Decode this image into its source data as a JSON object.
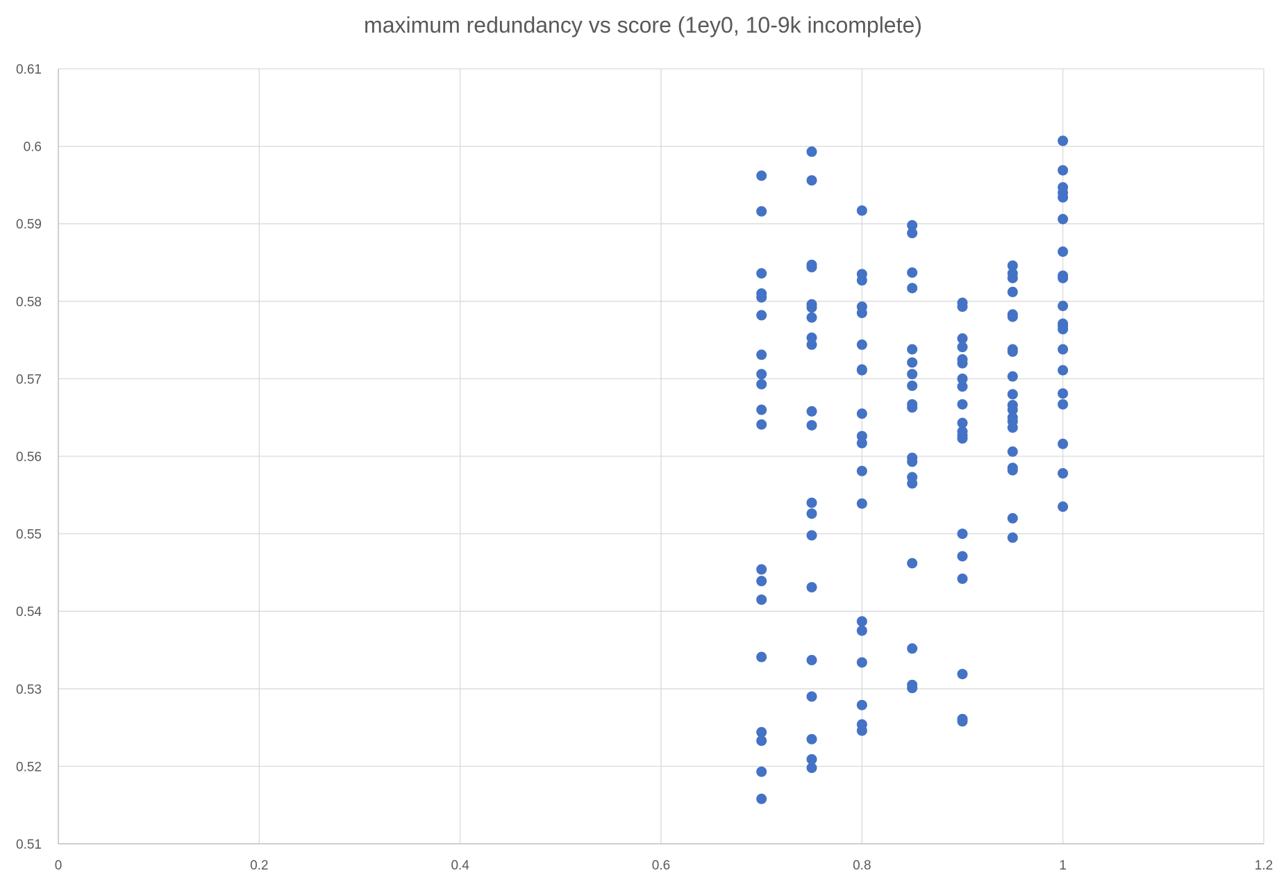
{
  "chart_data": {
    "type": "scatter",
    "title": "maximum redundancy vs score (1ey0, 10-9k incomplete)",
    "xlabel": "",
    "ylabel": "",
    "xlim": [
      0,
      1.2
    ],
    "ylim": [
      0.51,
      0.61
    ],
    "x_ticks": [
      "0",
      "0.2",
      "0.4",
      "0.6",
      "0.8",
      "1",
      "1.2"
    ],
    "y_ticks": [
      "0.51",
      "0.52",
      "0.53",
      "0.54",
      "0.55",
      "0.56",
      "0.57",
      "0.58",
      "0.59",
      "0.6",
      "0.61"
    ],
    "grid": true,
    "legend": "none",
    "marker_color": "#4472C4",
    "series": [
      {
        "points": [
          [
            0.7,
            0.5962
          ],
          [
            0.7,
            0.5916
          ],
          [
            0.7,
            0.5836
          ],
          [
            0.7,
            0.581
          ],
          [
            0.7,
            0.5805
          ],
          [
            0.7,
            0.5782
          ],
          [
            0.7,
            0.5731
          ],
          [
            0.7,
            0.5706
          ],
          [
            0.7,
            0.5693
          ],
          [
            0.7,
            0.566
          ],
          [
            0.7,
            0.5641
          ],
          [
            0.7,
            0.5454
          ],
          [
            0.7,
            0.5439
          ],
          [
            0.7,
            0.5415
          ],
          [
            0.7,
            0.5341
          ],
          [
            0.7,
            0.5244
          ],
          [
            0.7,
            0.5233
          ],
          [
            0.7,
            0.5193
          ],
          [
            0.7,
            0.5158
          ],
          [
            0.75,
            0.5993
          ],
          [
            0.75,
            0.5956
          ],
          [
            0.75,
            0.5847
          ],
          [
            0.75,
            0.5844
          ],
          [
            0.75,
            0.5796
          ],
          [
            0.75,
            0.5792
          ],
          [
            0.75,
            0.5779
          ],
          [
            0.75,
            0.5753
          ],
          [
            0.75,
            0.5744
          ],
          [
            0.75,
            0.5658
          ],
          [
            0.75,
            0.564
          ],
          [
            0.75,
            0.554
          ],
          [
            0.75,
            0.5526
          ],
          [
            0.75,
            0.5498
          ],
          [
            0.75,
            0.5431
          ],
          [
            0.75,
            0.5337
          ],
          [
            0.75,
            0.529
          ],
          [
            0.75,
            0.5235
          ],
          [
            0.75,
            0.5209
          ],
          [
            0.75,
            0.5198
          ],
          [
            0.8,
            0.5917
          ],
          [
            0.8,
            0.5835
          ],
          [
            0.8,
            0.5827
          ],
          [
            0.8,
            0.5793
          ],
          [
            0.8,
            0.5785
          ],
          [
            0.8,
            0.5744
          ],
          [
            0.8,
            0.5712
          ],
          [
            0.8,
            0.5711
          ],
          [
            0.8,
            0.5655
          ],
          [
            0.8,
            0.5626
          ],
          [
            0.8,
            0.5617
          ],
          [
            0.8,
            0.5581
          ],
          [
            0.8,
            0.5539
          ],
          [
            0.8,
            0.5387
          ],
          [
            0.8,
            0.5375
          ],
          [
            0.8,
            0.5334
          ],
          [
            0.8,
            0.5279
          ],
          [
            0.8,
            0.5254
          ],
          [
            0.8,
            0.5246
          ],
          [
            0.85,
            0.5898
          ],
          [
            0.85,
            0.5888
          ],
          [
            0.85,
            0.5837
          ],
          [
            0.85,
            0.5817
          ],
          [
            0.85,
            0.5738
          ],
          [
            0.85,
            0.5721
          ],
          [
            0.85,
            0.5706
          ],
          [
            0.85,
            0.5691
          ],
          [
            0.85,
            0.5667
          ],
          [
            0.85,
            0.5663
          ],
          [
            0.85,
            0.5598
          ],
          [
            0.85,
            0.5593
          ],
          [
            0.85,
            0.5573
          ],
          [
            0.85,
            0.5565
          ],
          [
            0.85,
            0.5462
          ],
          [
            0.85,
            0.5352
          ],
          [
            0.85,
            0.5305
          ],
          [
            0.85,
            0.5301
          ],
          [
            0.9,
            0.5798
          ],
          [
            0.9,
            0.5793
          ],
          [
            0.9,
            0.5752
          ],
          [
            0.9,
            0.5741
          ],
          [
            0.9,
            0.5725
          ],
          [
            0.9,
            0.572
          ],
          [
            0.9,
            0.57
          ],
          [
            0.9,
            0.569
          ],
          [
            0.9,
            0.5667
          ],
          [
            0.9,
            0.5643
          ],
          [
            0.9,
            0.5632
          ],
          [
            0.9,
            0.5627
          ],
          [
            0.9,
            0.5623
          ],
          [
            0.9,
            0.55
          ],
          [
            0.9,
            0.5471
          ],
          [
            0.9,
            0.5442
          ],
          [
            0.9,
            0.5319
          ],
          [
            0.9,
            0.5261
          ],
          [
            0.9,
            0.5258
          ],
          [
            0.95,
            0.5846
          ],
          [
            0.95,
            0.5836
          ],
          [
            0.95,
            0.583
          ],
          [
            0.95,
            0.5812
          ],
          [
            0.95,
            0.5783
          ],
          [
            0.95,
            0.578
          ],
          [
            0.95,
            0.5738
          ],
          [
            0.95,
            0.5735
          ],
          [
            0.95,
            0.5703
          ],
          [
            0.95,
            0.568
          ],
          [
            0.95,
            0.5666
          ],
          [
            0.95,
            0.566
          ],
          [
            0.95,
            0.565
          ],
          [
            0.95,
            0.5645
          ],
          [
            0.95,
            0.5637
          ],
          [
            0.95,
            0.5606
          ],
          [
            0.95,
            0.5585
          ],
          [
            0.95,
            0.5582
          ],
          [
            0.95,
            0.552
          ],
          [
            0.95,
            0.5495
          ],
          [
            1.0,
            0.6007
          ],
          [
            1.0,
            0.5969
          ],
          [
            1.0,
            0.5947
          ],
          [
            1.0,
            0.594
          ],
          [
            1.0,
            0.5934
          ],
          [
            1.0,
            0.5906
          ],
          [
            1.0,
            0.5864
          ],
          [
            1.0,
            0.5833
          ],
          [
            1.0,
            0.583
          ],
          [
            1.0,
            0.5794
          ],
          [
            1.0,
            0.5771
          ],
          [
            1.0,
            0.5768
          ],
          [
            1.0,
            0.5764
          ],
          [
            1.0,
            0.5738
          ],
          [
            1.0,
            0.5711
          ],
          [
            1.0,
            0.5681
          ],
          [
            1.0,
            0.5667
          ],
          [
            1.0,
            0.5616
          ],
          [
            1.0,
            0.5578
          ],
          [
            1.0,
            0.5535
          ]
        ]
      }
    ]
  }
}
